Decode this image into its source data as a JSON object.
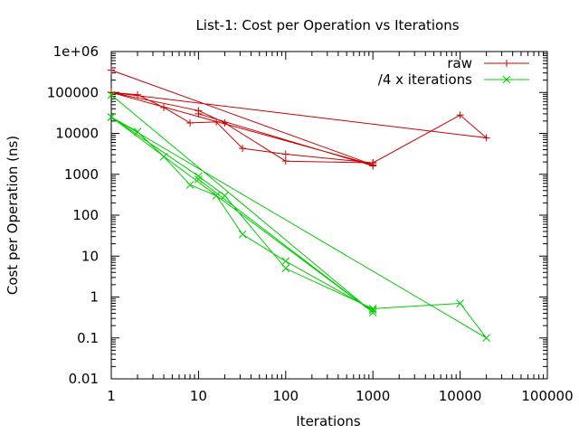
{
  "chart_data": {
    "type": "line",
    "title": "List-1: Cost per Operation vs Iterations",
    "xlabel": "Iterations",
    "ylabel": "Cost per Operation (ns)",
    "xscale": "log",
    "yscale": "log",
    "xlim": [
      1,
      100000
    ],
    "ylim": [
      0.01,
      1000000
    ],
    "x_ticks": [
      1,
      10,
      100,
      1000,
      10000,
      100000
    ],
    "x_tick_labels": [
      "1",
      "10",
      "100",
      "1000",
      "10000",
      "100000"
    ],
    "y_ticks": [
      0.01,
      0.1,
      1,
      10,
      100,
      1000,
      10000,
      100000,
      1000000
    ],
    "y_tick_labels": [
      "0.01",
      "0.1",
      "1",
      "10",
      "100",
      "1000",
      "10000",
      "100000",
      "1e+06"
    ],
    "grid": false,
    "legend_position": "top-right",
    "series": [
      {
        "name": "raw",
        "color": "#cc0000",
        "marker": "plus",
        "points": [
          [
            1,
            350000
          ],
          [
            1000,
            1700
          ],
          [
            1,
            100000
          ],
          [
            20000,
            7800
          ],
          [
            10000,
            28000
          ],
          [
            1000,
            1900
          ],
          [
            100,
            2100
          ],
          [
            20,
            18000
          ],
          [
            10,
            36000
          ],
          [
            1,
            100000
          ],
          [
            2,
            88000
          ],
          [
            4,
            43000
          ],
          [
            8,
            18000
          ],
          [
            16,
            19000
          ],
          [
            32,
            4300
          ],
          [
            100,
            3100
          ],
          [
            1000,
            1900
          ],
          [
            1000,
            1600
          ],
          [
            10,
            30000
          ]
        ]
      },
      {
        "name": "/4 x iterations",
        "color": "#00cc00",
        "marker": "cross",
        "points": [
          [
            1,
            87000
          ],
          [
            1000,
            0.42
          ],
          [
            1,
            25000
          ],
          [
            20000,
            0.1
          ],
          [
            10000,
            0.7
          ],
          [
            1000,
            0.52
          ],
          [
            100,
            5.0
          ],
          [
            20,
            300
          ],
          [
            10,
            900
          ],
          [
            1,
            25000
          ],
          [
            2,
            11000
          ],
          [
            4,
            2700
          ],
          [
            8,
            550
          ],
          [
            16,
            300
          ],
          [
            32,
            34
          ],
          [
            100,
            7.5
          ],
          [
            1000,
            0.48
          ],
          [
            1000,
            0.42
          ],
          [
            10,
            750
          ]
        ]
      }
    ]
  }
}
